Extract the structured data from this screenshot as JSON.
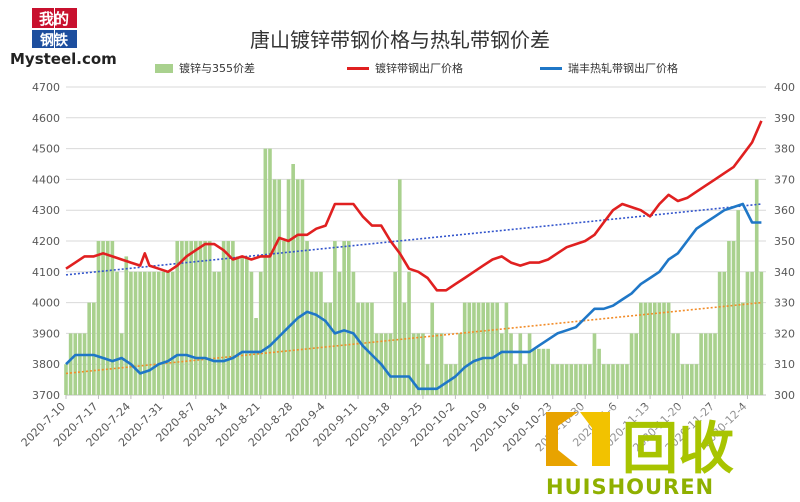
{
  "logo": {
    "line1": "我的",
    "line2": "钢铁",
    "brand": "Mysteel.com"
  },
  "watermark": {
    "chinese": "回收",
    "latin": "HUISHOUREN"
  },
  "chart_data": {
    "type": "bar+line",
    "title": "唐山镀锌带钢价格与热轧带钢价差",
    "legend": [
      {
        "name": "镀锌与355价差",
        "color": "#a9d18e",
        "kind": "bar"
      },
      {
        "name": "镀锌带钢出厂价格",
        "color": "#e02020",
        "kind": "line"
      },
      {
        "name": "瑞丰热轧带钢出厂价格",
        "color": "#1f77c7",
        "kind": "line"
      }
    ],
    "x_tick_labels": [
      "2020-7-10",
      "2020-7-17",
      "2020-7-24",
      "2020-7-31",
      "2020-8-7",
      "2020-8-14",
      "2020-8-21",
      "2020-8-28",
      "2020-9-4",
      "2020-9-11",
      "2020-9-18",
      "2020-9-25",
      "2020-10-2",
      "2020-10-9",
      "2020-10-16",
      "2020-10-23",
      "2020-10-30",
      "2020-11-6",
      "2020-11-13",
      "2020-11-20",
      "2020-11-27",
      "2020-12-4"
    ],
    "x_tick_days": [
      0,
      7,
      14,
      21,
      28,
      35,
      42,
      49,
      56,
      63,
      70,
      77,
      84,
      91,
      98,
      105,
      112,
      119,
      126,
      133,
      140,
      147
    ],
    "x_range_days": [
      0,
      151
    ],
    "y_left": {
      "min": 3700,
      "max": 4700,
      "ticks": [
        3700,
        3800,
        3900,
        4000,
        4100,
        4200,
        4300,
        4400,
        4500,
        4600,
        4700
      ]
    },
    "y_right": {
      "min": 300,
      "max": 400,
      "ticks": [
        300,
        310,
        320,
        330,
        340,
        350,
        360,
        370,
        380,
        390,
        400
      ]
    },
    "gridlines": true,
    "bars": {
      "days": [
        0,
        1,
        2,
        3,
        4,
        5,
        6,
        7,
        8,
        9,
        10,
        11,
        12,
        13,
        14,
        15,
        16,
        17,
        18,
        19,
        20,
        21,
        22,
        23,
        24,
        25,
        26,
        27,
        28,
        29,
        30,
        31,
        32,
        33,
        34,
        35,
        36,
        37,
        38,
        39,
        40,
        41,
        42,
        43,
        44,
        45,
        46,
        47,
        48,
        49,
        50,
        51,
        52,
        53,
        54,
        55,
        56,
        57,
        58,
        59,
        60,
        61,
        62,
        63,
        64,
        65,
        66,
        67,
        68,
        69,
        70,
        71,
        72,
        73,
        74,
        75,
        76,
        77,
        78,
        79,
        80,
        81,
        82,
        83,
        84,
        85,
        86,
        87,
        88,
        89,
        90,
        91,
        92,
        93,
        94,
        95,
        96,
        97,
        98,
        99,
        100,
        101,
        102,
        103,
        104,
        105,
        106,
        107,
        108,
        109,
        110,
        111,
        112,
        113,
        114,
        115,
        116,
        117,
        118,
        119,
        120,
        121,
        122,
        123,
        124,
        125,
        126,
        127,
        128,
        129,
        130,
        131,
        132,
        133,
        134,
        135,
        136,
        137,
        138,
        139,
        140,
        141,
        142,
        143,
        144,
        145,
        146,
        147,
        148,
        149,
        150
      ],
      "values": [
        310,
        320,
        320,
        320,
        320,
        330,
        330,
        350,
        350,
        350,
        350,
        340,
        320,
        345,
        340,
        340,
        340,
        340,
        340,
        340,
        340,
        340,
        340,
        340,
        350,
        350,
        350,
        350,
        350,
        350,
        350,
        350,
        340,
        340,
        350,
        350,
        350,
        345,
        345,
        345,
        340,
        325,
        340,
        380,
        380,
        370,
        370,
        350,
        370,
        375,
        370,
        370,
        350,
        340,
        340,
        340,
        330,
        330,
        350,
        340,
        350,
        350,
        340,
        330,
        330,
        330,
        330,
        320,
        320,
        320,
        320,
        340,
        370,
        330,
        340,
        320,
        320,
        320,
        310,
        330,
        320,
        320,
        310,
        310,
        310,
        320,
        330,
        330,
        330,
        330,
        330,
        330,
        330,
        330,
        320,
        330,
        320,
        310,
        320,
        310,
        320,
        315,
        315,
        315,
        315,
        310,
        310,
        310,
        310,
        310,
        310,
        310,
        310,
        310,
        320,
        315,
        310,
        310,
        310,
        310,
        310,
        310,
        320,
        320,
        330,
        330,
        330,
        330,
        330,
        330,
        330,
        320,
        320,
        310,
        310,
        310,
        310,
        320,
        320,
        320,
        320,
        340,
        340,
        350,
        350,
        360,
        330,
        340,
        340,
        370,
        340
      ]
    },
    "line_red": {
      "name": "镀锌带钢出厂价格",
      "days": [
        0,
        2,
        4,
        6,
        8,
        10,
        12,
        14,
        16,
        17,
        18,
        20,
        22,
        24,
        26,
        28,
        30,
        32,
        34,
        36,
        38,
        40,
        42,
        44,
        46,
        48,
        50,
        52,
        54,
        56,
        58,
        60,
        62,
        64,
        66,
        68,
        70,
        72,
        74,
        76,
        78,
        80,
        82,
        84,
        86,
        88,
        90,
        92,
        94,
        96,
        98,
        100,
        102,
        104,
        106,
        108,
        110,
        112,
        114,
        116,
        118,
        120,
        122,
        124,
        126,
        128,
        130,
        132,
        134,
        136,
        138,
        140,
        142,
        144,
        146,
        148,
        150
      ],
      "values": [
        4110,
        4130,
        4150,
        4150,
        4160,
        4150,
        4140,
        4130,
        4120,
        4160,
        4120,
        4110,
        4100,
        4120,
        4150,
        4170,
        4190,
        4190,
        4170,
        4140,
        4150,
        4140,
        4150,
        4150,
        4210,
        4200,
        4220,
        4220,
        4240,
        4250,
        4320,
        4320,
        4320,
        4280,
        4250,
        4250,
        4200,
        4160,
        4110,
        4100,
        4080,
        4040,
        4040,
        4060,
        4080,
        4100,
        4120,
        4140,
        4150,
        4130,
        4120,
        4130,
        4130,
        4140,
        4160,
        4180,
        4190,
        4200,
        4220,
        4260,
        4300,
        4320,
        4310,
        4300,
        4280,
        4320,
        4350,
        4330,
        4340,
        4360,
        4380,
        4400,
        4420,
        4440,
        4480,
        4520,
        4590
      ]
    },
    "line_blue": {
      "name": "瑞丰热轧带钢出厂价格",
      "days": [
        0,
        2,
        4,
        6,
        8,
        10,
        12,
        14,
        16,
        18,
        20,
        22,
        24,
        26,
        28,
        30,
        32,
        34,
        36,
        38,
        40,
        42,
        44,
        46,
        48,
        50,
        52,
        54,
        56,
        58,
        60,
        62,
        64,
        66,
        68,
        70,
        72,
        74,
        76,
        78,
        80,
        82,
        84,
        86,
        88,
        90,
        92,
        94,
        96,
        98,
        100,
        102,
        104,
        106,
        108,
        110,
        112,
        114,
        116,
        118,
        120,
        122,
        124,
        126,
        128,
        130,
        132,
        134,
        136,
        138,
        140,
        142,
        144,
        146,
        148,
        150
      ],
      "values": [
        3800,
        3830,
        3830,
        3830,
        3820,
        3810,
        3820,
        3800,
        3770,
        3780,
        3800,
        3810,
        3830,
        3830,
        3820,
        3820,
        3810,
        3810,
        3820,
        3840,
        3840,
        3840,
        3860,
        3890,
        3920,
        3950,
        3970,
        3960,
        3940,
        3900,
        3910,
        3900,
        3860,
        3830,
        3800,
        3760,
        3760,
        3760,
        3720,
        3720,
        3720,
        3740,
        3760,
        3790,
        3810,
        3820,
        3820,
        3840,
        3840,
        3840,
        3840,
        3860,
        3880,
        3900,
        3910,
        3920,
        3950,
        3980,
        3980,
        3990,
        4010,
        4030,
        4060,
        4080,
        4100,
        4140,
        4160,
        4200,
        4240,
        4260,
        4280,
        4300,
        4310,
        4320,
        4260,
        4260
      ]
    },
    "trend_blue": {
      "color": "#3355cc",
      "from": [
        0,
        4090
      ],
      "to": [
        150,
        4320
      ]
    },
    "trend_orange": {
      "color": "#f28c28",
      "from": [
        0,
        3770
      ],
      "to": [
        150,
        4000
      ]
    }
  }
}
